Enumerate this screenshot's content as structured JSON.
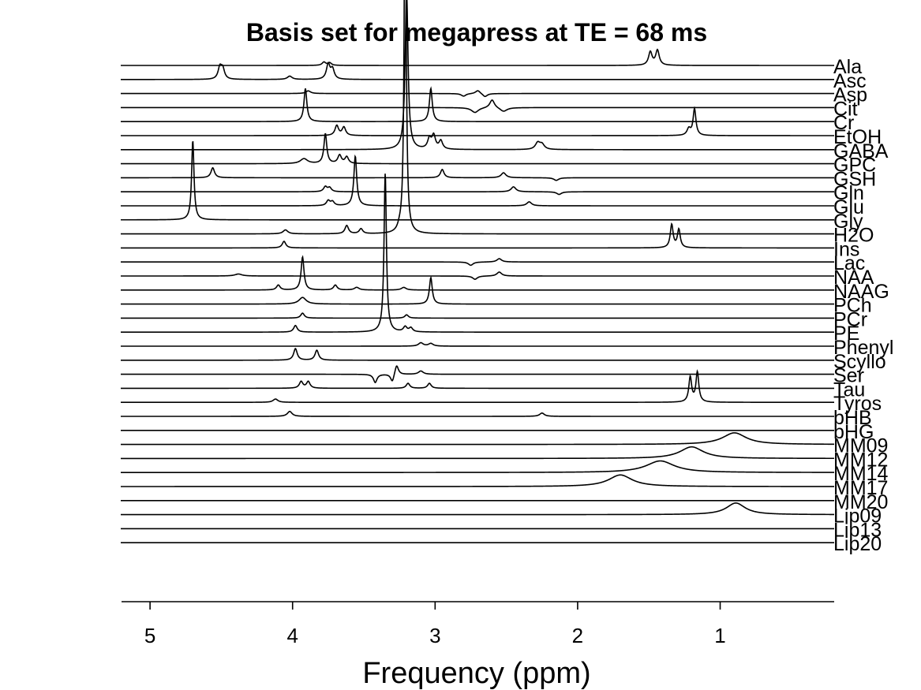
{
  "chart_data": {
    "type": "line",
    "title": "Basis set for megapress at TE = 68 ms",
    "xlabel": "Frequency (ppm)",
    "ylabel": "",
    "x_reversed": true,
    "xlim": [
      5.2,
      0.2
    ],
    "xticks": [
      5,
      4,
      3,
      2,
      1
    ],
    "grid": false,
    "series": [
      {
        "name": "Ala",
        "peaks": [
          [
            3.78,
            0.1,
            0.015
          ],
          [
            3.74,
            0.08,
            0.015
          ],
          [
            1.49,
            0.4,
            0.015
          ],
          [
            1.44,
            0.45,
            0.015
          ]
        ]
      },
      {
        "name": "Asc",
        "peaks": [
          [
            4.51,
            0.35,
            0.015
          ],
          [
            4.49,
            0.3,
            0.015
          ],
          [
            4.02,
            0.1,
            0.02
          ],
          [
            3.75,
            0.45,
            0.015
          ],
          [
            3.72,
            0.3,
            0.015
          ]
        ]
      },
      {
        "name": "Asp",
        "peaks": [
          [
            3.89,
            0.08,
            0.02
          ],
          [
            2.8,
            -0.08,
            0.02
          ],
          [
            2.7,
            0.1,
            0.02
          ],
          [
            2.65,
            -0.1,
            0.02
          ]
        ]
      },
      {
        "name": "Cit",
        "peaks": [
          [
            2.72,
            -0.15,
            0.03
          ],
          [
            2.6,
            0.25,
            0.02
          ],
          [
            2.52,
            -0.12,
            0.03
          ]
        ]
      },
      {
        "name": "Cr",
        "peaks": [
          [
            3.91,
            1.0,
            0.012
          ],
          [
            3.03,
            1.0,
            0.012
          ]
        ]
      },
      {
        "name": "EtOH",
        "peaks": [
          [
            3.69,
            0.3,
            0.015
          ],
          [
            3.64,
            0.25,
            0.015
          ],
          [
            1.22,
            0.2,
            0.015
          ],
          [
            1.18,
            0.8,
            0.012
          ]
        ]
      },
      {
        "name": "GABA",
        "peaks": [
          [
            3.2,
            4.8,
            0.012
          ],
          [
            3.04,
            0.3,
            0.015
          ],
          [
            3.01,
            0.4,
            0.015
          ],
          [
            2.96,
            0.25,
            0.015
          ],
          [
            2.28,
            0.2,
            0.02
          ],
          [
            2.25,
            0.15,
            0.02
          ]
        ]
      },
      {
        "name": "GPC",
        "peaks": [
          [
            3.92,
            0.15,
            0.03
          ],
          [
            3.67,
            0.25,
            0.015
          ],
          [
            3.62,
            0.2,
            0.015
          ],
          [
            3.77,
            0.9,
            0.012
          ]
        ]
      },
      {
        "name": "GSH",
        "peaks": [
          [
            4.56,
            0.3,
            0.015
          ],
          [
            2.95,
            0.25,
            0.015
          ],
          [
            2.52,
            0.15,
            0.02
          ],
          [
            2.15,
            -0.08,
            0.02
          ]
        ]
      },
      {
        "name": "Gln",
        "peaks": [
          [
            3.77,
            0.15,
            0.015
          ],
          [
            3.74,
            0.12,
            0.015
          ],
          [
            2.45,
            0.15,
            0.02
          ],
          [
            2.13,
            -0.08,
            0.02
          ]
        ]
      },
      {
        "name": "Glu",
        "peaks": [
          [
            3.75,
            0.15,
            0.015
          ],
          [
            3.72,
            0.12,
            0.015
          ],
          [
            3.56,
            1.5,
            0.012
          ],
          [
            2.34,
            0.12,
            0.02
          ]
        ]
      },
      {
        "name": "Gly",
        "peaks": [
          [
            4.7,
            2.4,
            0.01
          ]
        ]
      },
      {
        "name": "H2O",
        "peaks": [
          [
            4.05,
            0.12,
            0.02
          ],
          [
            3.62,
            0.25,
            0.015
          ],
          [
            3.52,
            0.15,
            0.015
          ],
          [
            3.25,
            0.1,
            0.015
          ],
          [
            3.21,
            12.0,
            0.008
          ]
        ]
      },
      {
        "name": "Ins",
        "peaks": [
          [
            4.06,
            0.2,
            0.015
          ],
          [
            1.34,
            0.7,
            0.012
          ],
          [
            1.29,
            0.55,
            0.012
          ]
        ]
      },
      {
        "name": "Lac",
        "peaks": [
          [
            2.75,
            -0.1,
            0.02
          ],
          [
            2.55,
            0.1,
            0.02
          ]
        ]
      },
      {
        "name": "NAA",
        "peaks": [
          [
            4.38,
            0.06,
            0.03
          ],
          [
            2.72,
            -0.1,
            0.02
          ],
          [
            2.55,
            0.12,
            0.02
          ]
        ]
      },
      {
        "name": "NAAG",
        "peaks": [
          [
            4.1,
            0.15,
            0.015
          ],
          [
            3.7,
            0.15,
            0.015
          ],
          [
            3.55,
            0.08,
            0.02
          ],
          [
            3.22,
            0.08,
            0.02
          ],
          [
            3.93,
            1.0,
            0.012
          ]
        ]
      },
      {
        "name": "PCh",
        "peaks": [
          [
            3.03,
            0.8,
            0.012
          ],
          [
            3.93,
            0.2,
            0.03
          ]
        ]
      },
      {
        "name": "PCr",
        "peaks": [
          [
            3.93,
            0.15,
            0.015
          ],
          [
            3.2,
            0.1,
            0.015
          ]
        ]
      },
      {
        "name": "PE",
        "peaks": [
          [
            3.98,
            0.2,
            0.015
          ],
          [
            3.35,
            4.8,
            0.01
          ],
          [
            3.21,
            0.15,
            0.015
          ],
          [
            3.17,
            0.12,
            0.015
          ]
        ]
      },
      {
        "name": "Phenyl",
        "peaks": [
          [
            3.1,
            0.1,
            0.02
          ],
          [
            3.03,
            0.08,
            0.02
          ]
        ]
      },
      {
        "name": "Scyllo",
        "peaks": [
          [
            3.98,
            0.35,
            0.015
          ],
          [
            3.83,
            0.3,
            0.015
          ]
        ]
      },
      {
        "name": "Ser",
        "peaks": [
          [
            3.42,
            -0.25,
            0.015
          ],
          [
            3.3,
            -0.25,
            0.015
          ],
          [
            3.27,
            0.3,
            0.015
          ],
          [
            3.1,
            0.1,
            0.02
          ]
        ]
      },
      {
        "name": "Tau",
        "peaks": [
          [
            3.94,
            0.2,
            0.015
          ],
          [
            3.89,
            0.2,
            0.015
          ],
          [
            3.19,
            0.15,
            0.015
          ],
          [
            3.04,
            0.15,
            0.015
          ]
        ]
      },
      {
        "name": "Tyros",
        "peaks": [
          [
            4.12,
            0.1,
            0.02
          ],
          [
            1.21,
            0.75,
            0.012
          ],
          [
            1.16,
            0.9,
            0.012
          ]
        ]
      },
      {
        "name": "bHB",
        "peaks": [
          [
            4.02,
            0.15,
            0.02
          ],
          [
            2.25,
            0.1,
            0.02
          ]
        ]
      },
      {
        "name": "bHG",
        "peaks": []
      },
      {
        "name": "MM09",
        "peaks": [
          [
            0.9,
            0.35,
            0.1
          ]
        ]
      },
      {
        "name": "MM12",
        "peaks": [
          [
            1.2,
            0.35,
            0.1
          ]
        ]
      },
      {
        "name": "MM14",
        "peaks": [
          [
            1.42,
            0.35,
            0.12
          ]
        ]
      },
      {
        "name": "MM17",
        "peaks": [
          [
            1.7,
            0.35,
            0.1
          ]
        ]
      },
      {
        "name": "MM20",
        "peaks": []
      },
      {
        "name": "Lip09",
        "peaks": [
          [
            0.89,
            0.35,
            0.08
          ]
        ]
      },
      {
        "name": "Lip13",
        "peaks": []
      },
      {
        "name": "Lip20",
        "peaks": []
      }
    ]
  }
}
